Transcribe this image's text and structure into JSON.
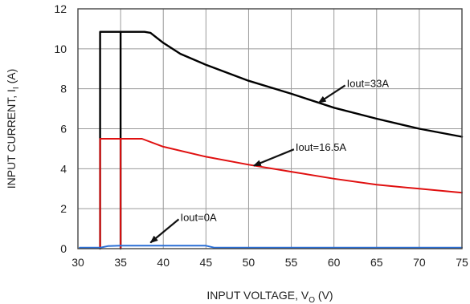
{
  "chart_data": {
    "type": "line",
    "xlabel": "INPUT VOLTAGE, V",
    "xlabel_sub": "O",
    "xlabel_unit": " (V)",
    "ylabel": "INPUT CURRENT, I",
    "ylabel_sub": "I",
    "ylabel_unit": " (A)",
    "xlim": [
      30,
      75
    ],
    "ylim": [
      0,
      12
    ],
    "xticks": [
      30,
      35,
      40,
      45,
      50,
      55,
      60,
      65,
      70,
      75
    ],
    "yticks": [
      0,
      2,
      4,
      6,
      8,
      10,
      12
    ],
    "grid": true,
    "series": [
      {
        "name": "Iout=33A",
        "color": "#000000",
        "points": [
          [
            32.6,
            0
          ],
          [
            32.6,
            10.85
          ],
          [
            35.0,
            10.85
          ],
          [
            35.0,
            0
          ],
          [
            35.0,
            10.85
          ],
          [
            37.8,
            10.85
          ],
          [
            38.5,
            10.8
          ],
          [
            40,
            10.3
          ],
          [
            42,
            9.75
          ],
          [
            45,
            9.2
          ],
          [
            50,
            8.4
          ],
          [
            55,
            7.75
          ],
          [
            60,
            7.05
          ],
          [
            65,
            6.5
          ],
          [
            70,
            6.0
          ],
          [
            75,
            5.6
          ]
        ]
      },
      {
        "name": "Iout=16.5A",
        "color": "#e01010",
        "points": [
          [
            32.6,
            0
          ],
          [
            32.6,
            5.5
          ],
          [
            35.0,
            5.5
          ],
          [
            35.0,
            0
          ],
          [
            35.0,
            5.5
          ],
          [
            37.5,
            5.5
          ],
          [
            40,
            5.1
          ],
          [
            45,
            4.6
          ],
          [
            50,
            4.2
          ],
          [
            55,
            3.85
          ],
          [
            60,
            3.5
          ],
          [
            65,
            3.2
          ],
          [
            70,
            3.0
          ],
          [
            75,
            2.8
          ]
        ]
      },
      {
        "name": "Iout=0A",
        "color": "#2a6fd6",
        "points": [
          [
            30.2,
            0.05
          ],
          [
            32.6,
            0.05
          ],
          [
            33.5,
            0.13
          ],
          [
            35,
            0.15
          ],
          [
            45,
            0.15
          ],
          [
            46,
            0.05
          ],
          [
            75,
            0.05
          ]
        ]
      }
    ],
    "annotations": [
      {
        "text": "Iout=33A",
        "label_at": [
          61.5,
          8.25
        ],
        "arrow_to": [
          58.2,
          7.3
        ]
      },
      {
        "text": "Iout=16.5A",
        "label_at": [
          55.5,
          5.05
        ],
        "arrow_to": [
          50.6,
          4.15
        ]
      },
      {
        "text": "Iout=0A",
        "label_at": [
          42.0,
          1.55
        ],
        "arrow_to": [
          38.5,
          0.3
        ]
      }
    ]
  }
}
